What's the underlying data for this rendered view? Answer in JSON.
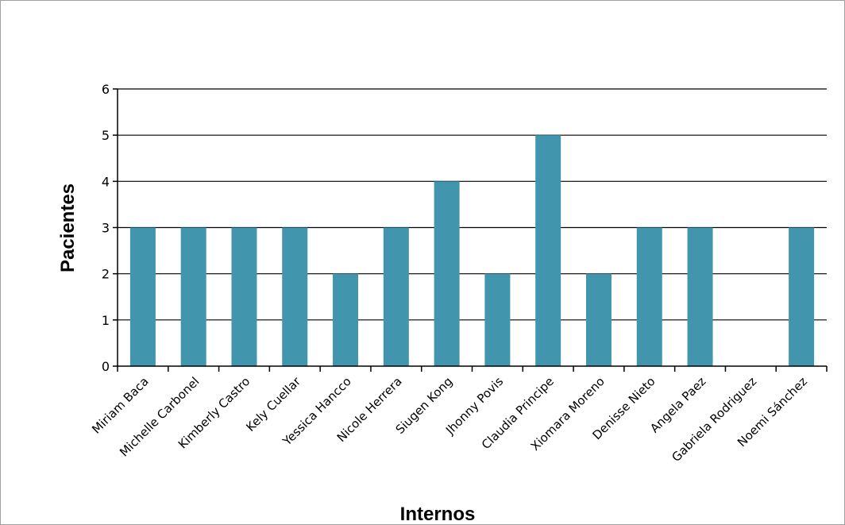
{
  "chart_data": {
    "type": "bar",
    "categories": [
      "Miriam Baca",
      "Michelle Carbonel",
      "Kimberly Castro",
      "Kely Cuellar",
      "Yessica Hancco",
      "Nicole Herrera",
      "Siugen Kong",
      "Jhonny Povis",
      "Claudia Principe",
      "Xiomara Moreno",
      "Denisse Nieto",
      "Angela Paez",
      "Gabriela Rodriguez",
      "Noemi Sánchez"
    ],
    "values": [
      3,
      3,
      3,
      3,
      2,
      3,
      4,
      2,
      5,
      2,
      3,
      3,
      0,
      3
    ],
    "title": "",
    "xlabel": "Internos",
    "ylabel": "Pacientes",
    "ylim": [
      0,
      6
    ],
    "yticks": [
      0,
      1,
      2,
      3,
      4,
      5,
      6
    ],
    "grid": true,
    "legend": "none",
    "bar_color": "#4196ad"
  }
}
